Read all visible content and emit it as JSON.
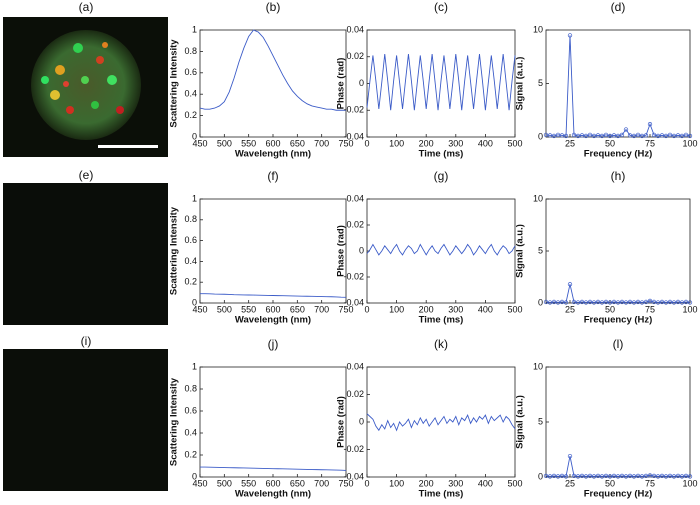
{
  "images": [
    {
      "label": "(a)"
    },
    {
      "label": "(e)"
    },
    {
      "label": "(i)"
    }
  ],
  "chart_data": [
    {
      "type": "line",
      "title": "(b)",
      "xlabel": "Wavelength (nm)",
      "ylabel": "Scattering Intensity",
      "x": [
        450,
        460,
        470,
        480,
        490,
        500,
        510,
        520,
        530,
        540,
        550,
        560,
        570,
        580,
        590,
        600,
        610,
        620,
        630,
        640,
        650,
        660,
        670,
        680,
        690,
        700,
        710,
        720,
        730,
        740,
        750
      ],
      "series": [
        {
          "color": "#3c5cc8",
          "values": [
            0.27,
            0.26,
            0.26,
            0.27,
            0.29,
            0.33,
            0.42,
            0.55,
            0.7,
            0.83,
            0.94,
            1.0,
            0.98,
            0.93,
            0.85,
            0.76,
            0.67,
            0.58,
            0.5,
            0.43,
            0.38,
            0.34,
            0.31,
            0.29,
            0.28,
            0.27,
            0.26,
            0.26,
            0.25,
            0.25,
            0.25
          ]
        }
      ],
      "xlim": [
        450,
        750
      ],
      "xticks": [
        450,
        500,
        550,
        600,
        650,
        700,
        750
      ],
      "ylim": [
        0,
        1
      ],
      "yticks": [
        0,
        0.2,
        0.4,
        0.6,
        0.8,
        1
      ]
    },
    {
      "type": "line",
      "title": "(c)",
      "xlabel": "Time (ms)",
      "ylabel": "Phase (rad)",
      "x": [
        0,
        10,
        20,
        30,
        40,
        50,
        60,
        70,
        80,
        90,
        100,
        110,
        120,
        130,
        140,
        150,
        160,
        170,
        180,
        190,
        200,
        210,
        220,
        230,
        240,
        250,
        260,
        270,
        280,
        290,
        300,
        310,
        320,
        330,
        340,
        350,
        360,
        370,
        380,
        390,
        400,
        410,
        420,
        430,
        440,
        450,
        460,
        470,
        480,
        490,
        500
      ],
      "series": [
        {
          "color": "#3c5cc8",
          "values": [
            -0.018,
            0.002,
            0.021,
            0.002,
            -0.019,
            0.001,
            0.022,
            0.002,
            -0.02,
            0.002,
            0.021,
            0.001,
            -0.019,
            0.002,
            0.022,
            0.002,
            -0.02,
            0.001,
            0.021,
            0.002,
            -0.019,
            0.002,
            0.022,
            0.001,
            -0.02,
            0.002,
            0.021,
            0.002,
            -0.019,
            0.001,
            0.022,
            0.002,
            -0.02,
            0.002,
            0.021,
            0.001,
            -0.019,
            0.002,
            0.022,
            0.002,
            -0.02,
            0.001,
            0.021,
            0.002,
            -0.019,
            0.002,
            0.022,
            0.001,
            -0.02,
            0.002,
            0.021
          ]
        }
      ],
      "xlim": [
        0,
        500
      ],
      "xticks": [
        0,
        100,
        200,
        300,
        400,
        500
      ],
      "ylim": [
        -0.04,
        0.04
      ],
      "yticks": [
        -0.04,
        -0.02,
        0,
        0.02,
        0.04
      ]
    },
    {
      "type": "line",
      "title": "(d)",
      "xlabel": "Frequency (Hz)",
      "ylabel": "Signal (a.u.)",
      "markers": true,
      "x": [
        10,
        12.5,
        15,
        17.5,
        20,
        22.5,
        25,
        27.5,
        30,
        32.5,
        35,
        37.5,
        40,
        42.5,
        45,
        47.5,
        50,
        52.5,
        55,
        57.5,
        60,
        62.5,
        65,
        67.5,
        70,
        72.5,
        75,
        77.5,
        80,
        82.5,
        85,
        87.5,
        90,
        92.5,
        95,
        97.5,
        100
      ],
      "series": [
        {
          "color": "#3c5cc8",
          "values": [
            0.2,
            0.15,
            0.1,
            0.2,
            0.15,
            0.1,
            9.5,
            0.2,
            0.1,
            0.15,
            0.1,
            0.2,
            0.1,
            0.15,
            0.1,
            0.2,
            0.1,
            0.15,
            0.1,
            0.2,
            0.7,
            0.15,
            0.1,
            0.2,
            0.1,
            0.15,
            1.2,
            0.2,
            0.1,
            0.15,
            0.1,
            0.2,
            0.1,
            0.15,
            0.1,
            0.2,
            0.1
          ]
        }
      ],
      "xlim": [
        10,
        100
      ],
      "xticks": [
        25,
        50,
        75,
        100
      ],
      "ylim": [
        0,
        10
      ],
      "yticks": [
        0,
        5,
        10
      ]
    },
    {
      "type": "line",
      "title": "(f)",
      "xlabel": "Wavelength (nm)",
      "ylabel": "Scattering Intensity",
      "x": [
        450,
        460,
        470,
        480,
        490,
        500,
        510,
        520,
        530,
        540,
        550,
        560,
        570,
        580,
        590,
        600,
        610,
        620,
        630,
        640,
        650,
        660,
        670,
        680,
        690,
        700,
        710,
        720,
        730,
        740,
        750
      ],
      "series": [
        {
          "color": "#3c5cc8",
          "values": [
            0.09,
            0.09,
            0.088,
            0.086,
            0.085,
            0.084,
            0.082,
            0.08,
            0.079,
            0.078,
            0.077,
            0.076,
            0.075,
            0.074,
            0.073,
            0.072,
            0.071,
            0.07,
            0.069,
            0.068,
            0.067,
            0.066,
            0.065,
            0.064,
            0.063,
            0.062,
            0.061,
            0.06,
            0.058,
            0.056,
            0.055
          ]
        }
      ],
      "xlim": [
        450,
        750
      ],
      "xticks": [
        450,
        500,
        550,
        600,
        650,
        700,
        750
      ],
      "ylim": [
        0,
        1
      ],
      "yticks": [
        0,
        0.2,
        0.4,
        0.6,
        0.8,
        1
      ]
    },
    {
      "type": "line",
      "title": "(g)",
      "xlabel": "Time (ms)",
      "ylabel": "Phase (rad)",
      "x": [
        0,
        10,
        20,
        30,
        40,
        50,
        60,
        70,
        80,
        90,
        100,
        110,
        120,
        130,
        140,
        150,
        160,
        170,
        180,
        190,
        200,
        210,
        220,
        230,
        240,
        250,
        260,
        270,
        280,
        290,
        300,
        310,
        320,
        330,
        340,
        350,
        360,
        370,
        380,
        390,
        400,
        410,
        420,
        430,
        440,
        450,
        460,
        470,
        480,
        490,
        500
      ],
      "series": [
        {
          "color": "#3c5cc8",
          "values": [
            -0.002,
            0.001,
            0.005,
            0.001,
            -0.003,
            0.0,
            0.004,
            0.001,
            -0.002,
            0.002,
            0.005,
            0.0,
            -0.003,
            0.001,
            0.004,
            0.002,
            -0.002,
            0.0,
            0.005,
            0.001,
            -0.003,
            0.001,
            0.004,
            0.0,
            -0.002,
            0.002,
            0.005,
            0.001,
            -0.003,
            0.0,
            0.004,
            0.001,
            -0.002,
            0.001,
            0.005,
            0.002,
            -0.003,
            0.0,
            0.004,
            0.001,
            -0.002,
            0.002,
            0.005,
            0.0,
            -0.003,
            0.001,
            0.004,
            0.002,
            -0.002,
            0.0,
            0.004
          ]
        }
      ],
      "xlim": [
        0,
        500
      ],
      "xticks": [
        0,
        100,
        200,
        300,
        400,
        500
      ],
      "ylim": [
        -0.04,
        0.04
      ],
      "yticks": [
        -0.04,
        -0.02,
        0,
        0.02,
        0.04
      ]
    },
    {
      "type": "line",
      "title": "(h)",
      "xlabel": "Frequency (Hz)",
      "ylabel": "Signal (a.u.)",
      "markers": true,
      "x": [
        10,
        12.5,
        15,
        17.5,
        20,
        22.5,
        25,
        27.5,
        30,
        32.5,
        35,
        37.5,
        40,
        42.5,
        45,
        47.5,
        50,
        52.5,
        55,
        57.5,
        60,
        62.5,
        65,
        67.5,
        70,
        72.5,
        75,
        77.5,
        80,
        82.5,
        85,
        87.5,
        90,
        92.5,
        95,
        97.5,
        100
      ],
      "series": [
        {
          "color": "#3c5cc8",
          "values": [
            0.1,
            0.05,
            0.1,
            0.05,
            0.1,
            0.05,
            1.8,
            0.1,
            0.05,
            0.1,
            0.05,
            0.1,
            0.05,
            0.1,
            0.05,
            0.1,
            0.05,
            0.1,
            0.05,
            0.1,
            0.05,
            0.1,
            0.05,
            0.1,
            0.05,
            0.1,
            0.2,
            0.1,
            0.05,
            0.1,
            0.05,
            0.1,
            0.05,
            0.1,
            0.05,
            0.1,
            0.05
          ]
        }
      ],
      "xlim": [
        10,
        100
      ],
      "xticks": [
        25,
        50,
        75,
        100
      ],
      "ylim": [
        0,
        10
      ],
      "yticks": [
        0,
        5,
        10
      ]
    },
    {
      "type": "line",
      "title": "(j)",
      "xlabel": "Wavelength (nm)",
      "ylabel": "Scattering Intensity",
      "x": [
        450,
        460,
        470,
        480,
        490,
        500,
        510,
        520,
        530,
        540,
        550,
        560,
        570,
        580,
        590,
        600,
        610,
        620,
        630,
        640,
        650,
        660,
        670,
        680,
        690,
        700,
        710,
        720,
        730,
        740,
        750
      ],
      "series": [
        {
          "color": "#3c5cc8",
          "values": [
            0.09,
            0.09,
            0.089,
            0.088,
            0.087,
            0.086,
            0.085,
            0.084,
            0.083,
            0.082,
            0.081,
            0.08,
            0.079,
            0.078,
            0.077,
            0.076,
            0.075,
            0.074,
            0.073,
            0.072,
            0.071,
            0.07,
            0.069,
            0.068,
            0.067,
            0.066,
            0.065,
            0.064,
            0.063,
            0.062,
            0.06
          ]
        }
      ],
      "xlim": [
        450,
        750
      ],
      "xticks": [
        450,
        500,
        550,
        600,
        650,
        700,
        750
      ],
      "ylim": [
        0,
        1
      ],
      "yticks": [
        0,
        0.2,
        0.4,
        0.6,
        0.8,
        1
      ]
    },
    {
      "type": "line",
      "title": "(k)",
      "xlabel": "Time (ms)",
      "ylabel": "Phase (rad)",
      "x": [
        0,
        10,
        20,
        30,
        40,
        50,
        60,
        70,
        80,
        90,
        100,
        110,
        120,
        130,
        140,
        150,
        160,
        170,
        180,
        190,
        200,
        210,
        220,
        230,
        240,
        250,
        260,
        270,
        280,
        290,
        300,
        310,
        320,
        330,
        340,
        350,
        360,
        370,
        380,
        390,
        400,
        410,
        420,
        430,
        440,
        450,
        460,
        470,
        480,
        490,
        500
      ],
      "series": [
        {
          "color": "#3c5cc8",
          "values": [
            0.006,
            0.004,
            0.002,
            -0.003,
            -0.006,
            -0.002,
            -0.005,
            0.001,
            -0.004,
            -0.001,
            -0.006,
            0.0,
            -0.003,
            -0.001,
            0.002,
            -0.004,
            0.001,
            -0.002,
            0.003,
            -0.001,
            0.002,
            -0.003,
            0.0,
            0.003,
            -0.002,
            0.001,
            0.004,
            -0.001,
            0.002,
            0.0,
            0.004,
            -0.002,
            0.003,
            0.001,
            0.005,
            -0.001,
            0.003,
            0.0,
            0.004,
            0.002,
            0.005,
            -0.001,
            0.004,
            0.001,
            0.003,
            0.005,
            0.0,
            0.004,
            0.002,
            -0.002,
            -0.005
          ]
        }
      ],
      "xlim": [
        0,
        500
      ],
      "xticks": [
        0,
        100,
        200,
        300,
        400,
        500
      ],
      "ylim": [
        -0.04,
        0.04
      ],
      "yticks": [
        -0.04,
        -0.02,
        0,
        0.02,
        0.04
      ]
    },
    {
      "type": "line",
      "title": "(l)",
      "xlabel": "Frequency (Hz)",
      "ylabel": "Signal (a.u.)",
      "markers": true,
      "x": [
        10,
        12.5,
        15,
        17.5,
        20,
        22.5,
        25,
        27.5,
        30,
        32.5,
        35,
        37.5,
        40,
        42.5,
        45,
        47.5,
        50,
        52.5,
        55,
        57.5,
        60,
        62.5,
        65,
        67.5,
        70,
        72.5,
        75,
        77.5,
        80,
        82.5,
        85,
        87.5,
        90,
        92.5,
        95,
        97.5,
        100
      ],
      "series": [
        {
          "color": "#3c5cc8",
          "values": [
            0.1,
            0.05,
            0.1,
            0.05,
            0.1,
            0.05,
            1.9,
            0.1,
            0.05,
            0.1,
            0.05,
            0.1,
            0.05,
            0.1,
            0.05,
            0.1,
            0.05,
            0.1,
            0.05,
            0.1,
            0.05,
            0.1,
            0.05,
            0.1,
            0.05,
            0.1,
            0.15,
            0.1,
            0.05,
            0.1,
            0.05,
            0.1,
            0.05,
            0.1,
            0.05,
            0.1,
            0.05
          ]
        }
      ],
      "xlim": [
        10,
        100
      ],
      "xticks": [
        25,
        50,
        75,
        100
      ],
      "ylim": [
        0,
        10
      ],
      "yticks": [
        0,
        5,
        10
      ]
    }
  ]
}
